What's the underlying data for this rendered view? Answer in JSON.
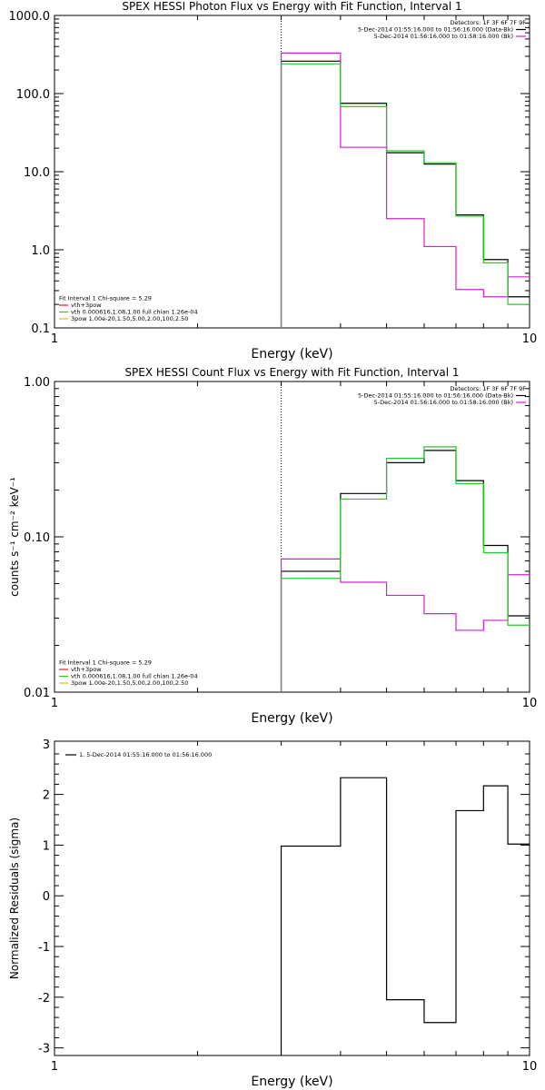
{
  "colors": {
    "black": "#000000",
    "magenta": "#d020d0",
    "green": "#22cc22",
    "red": "#e02020",
    "yellow": "#d8c000"
  },
  "chart_data": [
    {
      "type": "line",
      "step": true,
      "title": "SPEX HESSI Photon Flux vs Energy with Fit Function, Interval 1",
      "xlabel": "Energy (keV)",
      "ylabel": "",
      "xscale": "log",
      "yscale": "log",
      "xlim": [
        1,
        10
      ],
      "ylim": [
        0.1,
        1000
      ],
      "xticks": [
        {
          "v": 1,
          "label": "1"
        },
        {
          "v": 10,
          "label": "10"
        }
      ],
      "yticks": [
        {
          "v": 0.1,
          "label": "0.1"
        },
        {
          "v": 1,
          "label": "1.0"
        },
        {
          "v": 10,
          "label": "10.0"
        },
        {
          "v": 100,
          "label": "100.0"
        },
        {
          "v": 1000,
          "label": "1000.0"
        }
      ],
      "vline": 3,
      "edges": [
        3,
        4,
        5,
        6,
        7,
        8,
        9,
        10
      ],
      "series": [
        {
          "color": "black",
          "values": [
            260,
            75,
            17.5,
            12.5,
            2.8,
            0.75,
            0.25
          ]
        },
        {
          "color": "magenta",
          "values": [
            330,
            20.5,
            2.5,
            1.1,
            0.31,
            0.25,
            0.45
          ]
        },
        {
          "color": "green",
          "values": [
            240,
            68,
            18.5,
            13,
            2.7,
            0.68,
            0.2
          ]
        }
      ],
      "legend_right": [
        {
          "text": "Detectors: 1F 3F 6F 7F 9F",
          "color": ""
        },
        {
          "text": "5-Dec-2014 01:55:16.000 to 01:56:16.000 (Data-Bk)",
          "color": "black"
        },
        {
          "text": "5-Dec-2014 01:56:16.000 to 01:58:16.000 (Bk)",
          "color": "magenta"
        }
      ],
      "legend_left": [
        {
          "text": "Fit Interval 1    Chi-square = 5.29",
          "color": ""
        },
        {
          "text": "vth+3pow",
          "color": "red"
        },
        {
          "text": "vth 0.000616,1.08,1.00  full chian 1.26e-04",
          "color": "green"
        },
        {
          "text": "3pow 1.00e-20,1.50,5.00,2.00,100,2.50",
          "color": "yellow"
        }
      ]
    },
    {
      "type": "line",
      "step": true,
      "title": "SPEX HESSI Count Flux vs Energy with Fit Function, Interval 1",
      "xlabel": "Energy (keV)",
      "ylabel": "counts s⁻¹ cm⁻² keV⁻¹",
      "xscale": "log",
      "yscale": "log",
      "xlim": [
        1,
        10
      ],
      "ylim": [
        0.01,
        1.0
      ],
      "xticks": [
        {
          "v": 1,
          "label": "1"
        },
        {
          "v": 10,
          "label": "10"
        }
      ],
      "yticks": [
        {
          "v": 0.01,
          "label": "0.01"
        },
        {
          "v": 0.1,
          "label": "0.10"
        },
        {
          "v": 1,
          "label": "1.00"
        }
      ],
      "vline": 3,
      "edges": [
        3,
        4,
        5,
        6,
        7,
        8,
        9,
        10
      ],
      "series": [
        {
          "color": "black",
          "values": [
            0.06,
            0.19,
            0.3,
            0.36,
            0.23,
            0.088,
            0.031
          ]
        },
        {
          "color": "magenta",
          "values": [
            0.072,
            0.051,
            0.042,
            0.032,
            0.025,
            0.029,
            0.057
          ]
        },
        {
          "color": "green",
          "values": [
            0.054,
            0.175,
            0.32,
            0.38,
            0.22,
            0.079,
            0.027
          ]
        }
      ],
      "legend_right": [
        {
          "text": "Detectors: 1F 3F 6F 7F 9F",
          "color": ""
        },
        {
          "text": "5-Dec-2014 01:55:16.000 to 01:56:16.000 (Data-Bk)",
          "color": "black"
        },
        {
          "text": "5-Dec-2014 01:56:16.000 to 01:58:16.000 (Bk)",
          "color": "magenta"
        }
      ],
      "legend_left": [
        {
          "text": "Fit Interval 1    Chi-square = 5.29",
          "color": ""
        },
        {
          "text": "vth+3pow",
          "color": "red"
        },
        {
          "text": "vth 0.000616,1.08,1.00  full chian 1.26e-04",
          "color": "green"
        },
        {
          "text": "3pow 1.00e-20,1.50,5.00,2.00,100,2.50",
          "color": "yellow"
        }
      ]
    },
    {
      "type": "line",
      "step": true,
      "title": "",
      "xlabel": "Energy (keV)",
      "ylabel": "Normalized Residuals (sigma)",
      "xscale": "log",
      "yscale": "linear",
      "xlim": [
        1,
        10
      ],
      "ylim": [
        -3.15,
        3.05
      ],
      "xticks": [
        {
          "v": 1,
          "label": "1"
        },
        {
          "v": 10,
          "label": "10"
        }
      ],
      "yticks": [
        {
          "v": -3,
          "label": "-3"
        },
        {
          "v": -2,
          "label": "-2"
        },
        {
          "v": -1,
          "label": "-1"
        },
        {
          "v": 0,
          "label": "0"
        },
        {
          "v": 1,
          "label": "1"
        },
        {
          "v": 2,
          "label": "2"
        },
        {
          "v": 3,
          "label": "3"
        }
      ],
      "vline": null,
      "edges": [
        3,
        4,
        5,
        6,
        7,
        8,
        9,
        10
      ],
      "series": [
        {
          "color": "black",
          "values": [
            0.98,
            2.33,
            -2.05,
            -2.5,
            1.68,
            2.17,
            1.02
          ]
        }
      ],
      "legend_right": [],
      "legend_left": [],
      "legend_top": [
        {
          "text": "1.  5-Dec-2014 01:55:16.000 to 01:56:16.000",
          "color": "black"
        }
      ]
    }
  ]
}
